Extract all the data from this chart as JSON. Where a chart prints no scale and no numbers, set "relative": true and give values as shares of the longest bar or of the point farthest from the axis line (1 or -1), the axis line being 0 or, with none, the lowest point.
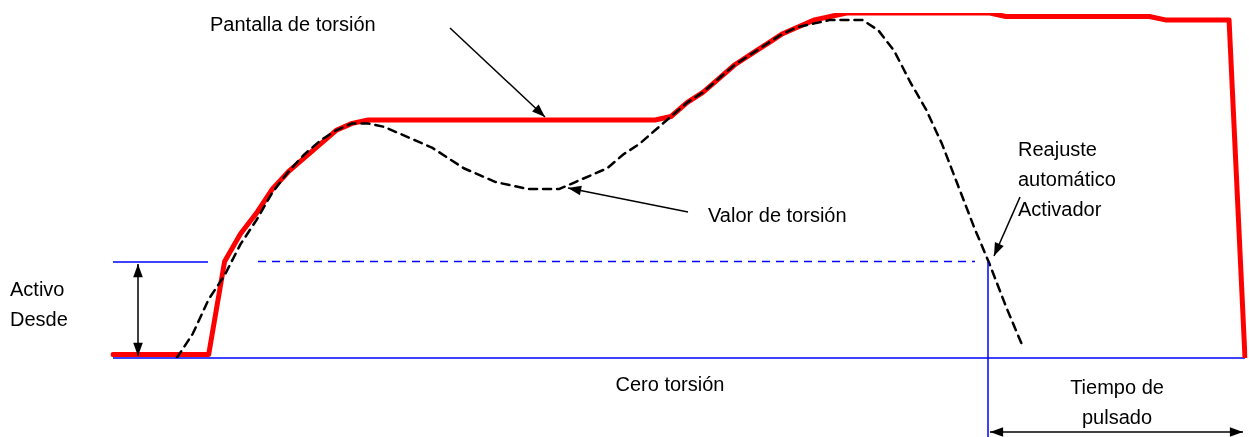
{
  "chart_data": {
    "type": "line",
    "relative": true,
    "grid": false,
    "legend": false,
    "marker": "none",
    "categories": [
      null,
      null,
      null,
      null,
      null,
      null,
      null,
      null,
      null,
      null,
      null,
      null,
      null,
      null,
      null,
      null,
      null,
      null,
      null,
      null,
      null,
      null,
      null,
      null,
      null,
      null,
      null,
      null,
      null,
      null,
      null,
      null,
      null,
      null,
      null,
      null,
      null,
      null,
      null,
      null,
      null,
      null,
      null,
      null,
      null,
      null,
      null,
      null,
      null,
      null,
      null,
      null,
      null,
      null,
      null,
      null,
      null,
      null,
      null,
      null,
      null,
      null,
      null,
      null,
      null,
      null,
      null,
      null,
      null,
      null,
      null,
      null
    ],
    "series": [
      {
        "color": "#ff0000",
        "line_style": "solid",
        "values": [
          0.01,
          0.01,
          0.01,
          0.01,
          0.01,
          0.01,
          0.01,
          0.28,
          0.36,
          0.42,
          0.49,
          0.54,
          0.58,
          0.62,
          0.66,
          0.68,
          0.69,
          0.69,
          0.69,
          0.69,
          0.69,
          0.69,
          0.69,
          0.69,
          0.69,
          0.69,
          0.69,
          0.69,
          0.69,
          0.69,
          0.69,
          0.69,
          0.69,
          0.69,
          0.69,
          0.7,
          0.74,
          0.77,
          0.81,
          0.85,
          0.88,
          0.91,
          0.94,
          0.96,
          0.98,
          0.99,
          1,
          1,
          1,
          1,
          1,
          1,
          1,
          1,
          1,
          1,
          0.99,
          0.99,
          0.99,
          0.99,
          0.99,
          0.99,
          0.99,
          0.99,
          0.99,
          0.99,
          0.98,
          0.98,
          0.98,
          0.98,
          0.98,
          0
        ]
      },
      {
        "color": "#000000",
        "line_style": "dashed",
        "values": [
          null,
          null,
          null,
          null,
          0,
          0.07,
          0.17,
          0.24,
          0.33,
          0.4,
          0.48,
          0.54,
          0.59,
          0.63,
          0.66,
          0.68,
          0.68,
          0.67,
          0.65,
          0.63,
          0.61,
          0.58,
          0.55,
          0.53,
          0.51,
          0.5,
          0.49,
          0.49,
          0.49,
          0.51,
          0.53,
          0.55,
          0.59,
          0.62,
          0.66,
          0.7,
          0.74,
          0.77,
          0.81,
          0.85,
          0.88,
          0.91,
          0.94,
          0.96,
          0.97,
          0.98,
          0.98,
          0.98,
          0.95,
          0.89,
          0.8,
          0.72,
          0.62,
          0.5,
          0.38,
          0.27,
          0.15,
          0.04,
          null,
          null,
          null,
          null,
          null,
          null,
          null,
          null,
          null,
          null,
          null,
          null,
          null,
          null
        ]
      }
    ],
    "ref_lines": [
      {
        "axis": "y",
        "value": 0,
        "label": "Cero torsión",
        "color": "#0000ff",
        "line_style": "solid"
      },
      {
        "axis": "y",
        "value": 0.28,
        "color": "#0000ff",
        "line_style": "dashed"
      }
    ],
    "annotations": [
      "Pantalla de torsión",
      "Valor de torsión",
      "Reajuste\nautomático\nActivador",
      "Activo\nDesde",
      "Tiempo de\npulsado"
    ]
  }
}
